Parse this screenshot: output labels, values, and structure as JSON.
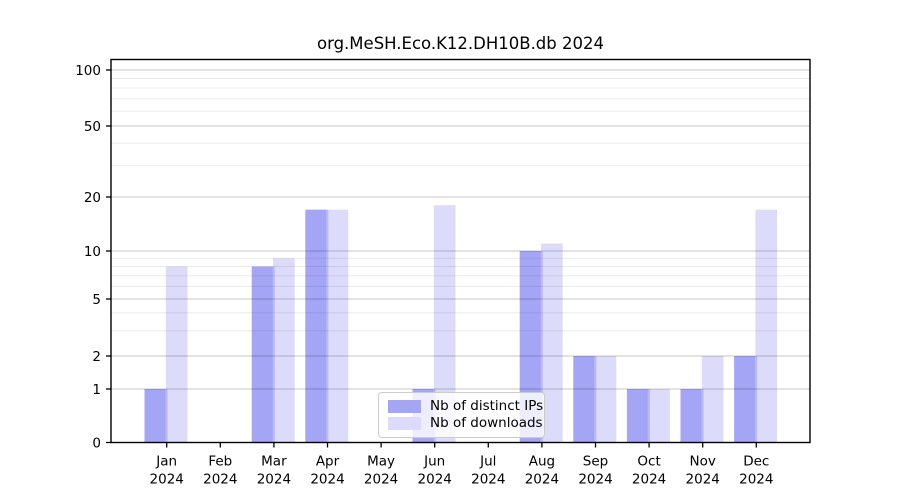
{
  "chart_data": {
    "type": "bar",
    "title": "org.MeSH.Eco.K12.DH10B.db 2024",
    "categories": [
      "Jan",
      "Feb",
      "Mar",
      "Apr",
      "May",
      "Jun",
      "Jul",
      "Aug",
      "Sep",
      "Oct",
      "Nov",
      "Dec"
    ],
    "year_label": "2024",
    "series": [
      {
        "name": "Nb of distinct IPs",
        "color": "#a5a5f5",
        "values": [
          1,
          0,
          8,
          17,
          0,
          1,
          0,
          10,
          2,
          1,
          1,
          2
        ]
      },
      {
        "name": "Nb of downloads",
        "color": "#dcdcfa",
        "values": [
          8,
          0,
          9,
          17,
          0,
          18,
          0,
          11,
          2,
          1,
          2,
          17
        ]
      }
    ],
    "overlap_color": "#b9b9f3",
    "y_ticks": [
      0,
      1,
      2,
      5,
      10,
      20,
      50,
      100
    ],
    "y_minor_ticks": [
      3,
      4,
      6,
      7,
      8,
      9,
      30,
      40,
      60,
      70,
      80,
      90
    ],
    "ylim": [
      0,
      100
    ],
    "xlabel": "",
    "ylabel": "",
    "scale": "log with 1-2-5 major ticks, linear segment from 0 to 1",
    "grid": "horizontal major and minor gridlines",
    "legend_position": "lower center",
    "colors": {
      "axis": "#000000",
      "grid_major": "rgba(0,0,0,0.22)",
      "grid_minor": "rgba(0,0,0,0.08)",
      "legend_border": "#cccccc"
    }
  }
}
